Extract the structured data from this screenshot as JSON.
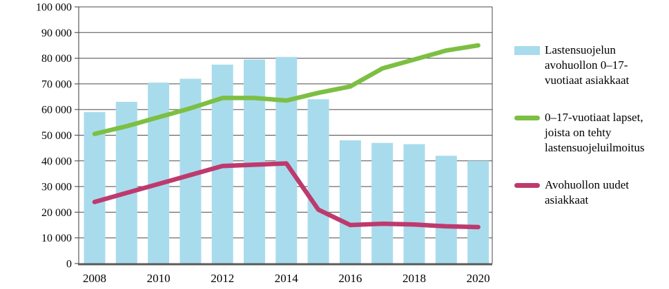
{
  "chart_data": {
    "type": "bar",
    "subtype": "bar-and-line-combo",
    "title": "",
    "xlabel": "",
    "ylabel": "",
    "categories": [
      2008,
      2009,
      2010,
      2011,
      2012,
      2013,
      2014,
      2015,
      2016,
      2017,
      2018,
      2019,
      2020
    ],
    "x_tick_labels": [
      "2008",
      "2010",
      "2012",
      "2014",
      "2016",
      "2018",
      "2020"
    ],
    "y_tick_labels": [
      "100 000",
      "90 000",
      "80 000",
      "70 000",
      "60 000",
      "50 000",
      "40 000",
      "30 000",
      "20 000",
      "10 000",
      "0"
    ],
    "ylim": [
      0,
      100000
    ],
    "ytick_step": 10000,
    "grid": true,
    "legend_position": "right",
    "series": [
      {
        "name": "Lastensuojelun avohuollon 0–17-vuotiaat asiakkaat",
        "type": "bar",
        "color": "#a8dcec",
        "values": [
          59000,
          63000,
          70500,
          72000,
          77500,
          79500,
          80500,
          64000,
          48000,
          47000,
          46500,
          42000,
          40000
        ]
      },
      {
        "name": "0–17-vuotiaat lapset, joista on tehty lastensuojeluilmoitus",
        "type": "line",
        "color": "#7cbf43",
        "values": [
          50500,
          53500,
          57000,
          60500,
          64500,
          64500,
          63500,
          66500,
          69000,
          76000,
          79500,
          83000,
          85000
        ]
      },
      {
        "name": "Avohuollon uudet asiakkaat",
        "type": "line",
        "color": "#be3a6e",
        "values": [
          24000,
          27500,
          31000,
          34500,
          38000,
          38500,
          39000,
          21000,
          15000,
          15500,
          15200,
          14500,
          14200
        ]
      }
    ],
    "legend": {
      "items": [
        {
          "label": "Lastensuojelun\navohuollon 0–17-\nvuotiaat asiakkaat",
          "swatch": "bar",
          "color": "#a8dcec"
        },
        {
          "label": "0–17-vuotiaat lapset,\njoista on tehty\nlastensuojeluilmoitus",
          "swatch": "line",
          "color": "#7cbf43"
        },
        {
          "label": "Avohuollon uudet\nasiakkaat",
          "swatch": "line",
          "color": "#be3a6e"
        }
      ]
    },
    "colors": {
      "bar_fill": "#a8dcec",
      "green_line": "#7cbf43",
      "pink_line": "#be3a6e",
      "gridline": "#4a4a4a",
      "axis": "#595959",
      "text": "#000000"
    }
  }
}
